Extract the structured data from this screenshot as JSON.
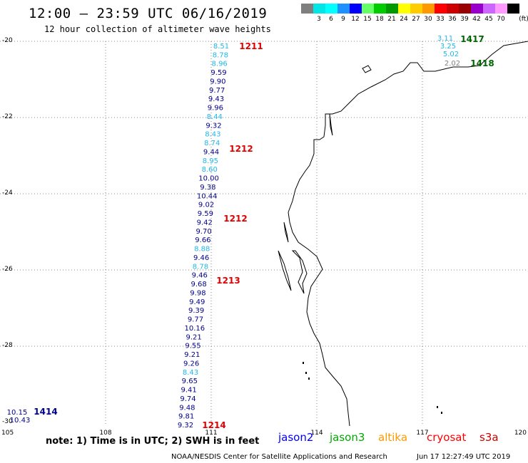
{
  "header": {
    "title": "12:00 — 23:59 UTC 06/16/2019",
    "subtitle": "12 hour collection of altimeter wave heights"
  },
  "scale": {
    "unit": "(ft)",
    "swatches": [
      {
        "label": "",
        "color": "#7f7f7f"
      },
      {
        "label": "3",
        "color": "#00e5e5"
      },
      {
        "label": "6",
        "color": "#00ffff"
      },
      {
        "label": "9",
        "color": "#1e90ff"
      },
      {
        "label": "12",
        "color": "#0000ff"
      },
      {
        "label": "15",
        "color": "#66ff66"
      },
      {
        "label": "18",
        "color": "#00cc00"
      },
      {
        "label": "21",
        "color": "#009900"
      },
      {
        "label": "24",
        "color": "#ffff00"
      },
      {
        "label": "27",
        "color": "#ffcc00"
      },
      {
        "label": "30",
        "color": "#ff9900"
      },
      {
        "label": "33",
        "color": "#ff0000"
      },
      {
        "label": "36",
        "color": "#cc0000"
      },
      {
        "label": "39",
        "color": "#990000"
      },
      {
        "label": "42",
        "color": "#9900cc"
      },
      {
        "label": "45",
        "color": "#cc66ff"
      },
      {
        "label": "70",
        "color": "#ff99ff"
      },
      {
        "label": "",
        "color": "#000000"
      }
    ]
  },
  "axes": {
    "lat_labels": [
      "-20",
      "-22",
      "-24",
      "-26",
      "-28",
      "-30"
    ],
    "lon_labels": [
      "105",
      "108",
      "111",
      "114",
      "117",
      "120"
    ]
  },
  "colors": {
    "dark_blue": "#00008b",
    "cyan": "#20b8e8",
    "pass_red": "#e00000",
    "pass_green": "#006600",
    "gray": "#808080",
    "grid": "#888888",
    "coast": "#000000"
  },
  "track_main": [
    {
      "v": "8.51",
      "c": "cyan"
    },
    {
      "v": "8.78",
      "c": "cyan"
    },
    {
      "v": "8.96",
      "c": "cyan"
    },
    {
      "v": "9.59",
      "c": "dark_blue"
    },
    {
      "v": "9.90",
      "c": "dark_blue"
    },
    {
      "v": "9.77",
      "c": "dark_blue"
    },
    {
      "v": "9.43",
      "c": "dark_blue"
    },
    {
      "v": "9.96",
      "c": "dark_blue"
    },
    {
      "v": "8.44",
      "c": "cyan"
    },
    {
      "v": "9.32",
      "c": "dark_blue"
    },
    {
      "v": "8.43",
      "c": "cyan"
    },
    {
      "v": "8.74",
      "c": "cyan"
    },
    {
      "v": "9.44",
      "c": "dark_blue"
    },
    {
      "v": "8.95",
      "c": "cyan"
    },
    {
      "v": "8.60",
      "c": "cyan"
    },
    {
      "v": "10.00",
      "c": "dark_blue"
    },
    {
      "v": "9.38",
      "c": "dark_blue"
    },
    {
      "v": "10.44",
      "c": "dark_blue"
    },
    {
      "v": "9.02",
      "c": "dark_blue"
    },
    {
      "v": "9.59",
      "c": "dark_blue"
    },
    {
      "v": "9.42",
      "c": "dark_blue"
    },
    {
      "v": "9.70",
      "c": "dark_blue"
    },
    {
      "v": "9.66",
      "c": "dark_blue"
    },
    {
      "v": "8.88",
      "c": "cyan"
    },
    {
      "v": "9.46",
      "c": "dark_blue"
    },
    {
      "v": "8.78",
      "c": "cyan"
    },
    {
      "v": "9.46",
      "c": "dark_blue"
    },
    {
      "v": "9.68",
      "c": "dark_blue"
    },
    {
      "v": "9.98",
      "c": "dark_blue"
    },
    {
      "v": "9.49",
      "c": "dark_blue"
    },
    {
      "v": "9.39",
      "c": "dark_blue"
    },
    {
      "v": "9.77",
      "c": "dark_blue"
    },
    {
      "v": "10.16",
      "c": "dark_blue"
    },
    {
      "v": "9.21",
      "c": "dark_blue"
    },
    {
      "v": "9.55",
      "c": "dark_blue"
    },
    {
      "v": "9.21",
      "c": "dark_blue"
    },
    {
      "v": "9.26",
      "c": "dark_blue"
    },
    {
      "v": "8.43",
      "c": "cyan"
    },
    {
      "v": "9.65",
      "c": "dark_blue"
    },
    {
      "v": "9.41",
      "c": "dark_blue"
    },
    {
      "v": "9.74",
      "c": "dark_blue"
    },
    {
      "v": "9.48",
      "c": "dark_blue"
    },
    {
      "v": "9.81",
      "c": "dark_blue"
    },
    {
      "v": "9.32",
      "c": "dark_blue"
    }
  ],
  "track_ne": [
    {
      "v": "3.11",
      "c": "cyan"
    },
    {
      "v": "3.25",
      "c": "cyan"
    },
    {
      "v": "5.02",
      "c": "cyan"
    },
    {
      "v": "2.02",
      "c": "gray"
    }
  ],
  "track_sw": [
    {
      "v": "10.15",
      "c": "dark_blue"
    },
    {
      "v": "10.43",
      "c": "dark_blue"
    }
  ],
  "pass_labels": [
    {
      "text": "1211",
      "c": "pass_red"
    },
    {
      "text": "1212",
      "c": "pass_red"
    },
    {
      "text": "1212",
      "c": "pass_red"
    },
    {
      "text": "1213",
      "c": "pass_red"
    },
    {
      "text": "1214",
      "c": "pass_red"
    },
    {
      "text": "1417",
      "c": "pass_green"
    },
    {
      "text": "1418",
      "c": "pass_green"
    },
    {
      "text": "1414",
      "c": "dark_blue"
    }
  ],
  "footer": {
    "note": "note: 1) Time is in UTC; 2) SWH is in feet",
    "satellites": [
      {
        "name": "jason2",
        "color": "#0000ff"
      },
      {
        "name": "jason3",
        "color": "#00aa00"
      },
      {
        "name": "altika",
        "color": "#ff9900"
      },
      {
        "name": "cryosat",
        "color": "#ff0000"
      },
      {
        "name": "s3a",
        "color": "#cc0000"
      }
    ],
    "credit_left": "NOAA/NESDIS Center for Satellite Applications and Research",
    "credit_right": "Jun 17 12:27:49 UTC 2019"
  }
}
